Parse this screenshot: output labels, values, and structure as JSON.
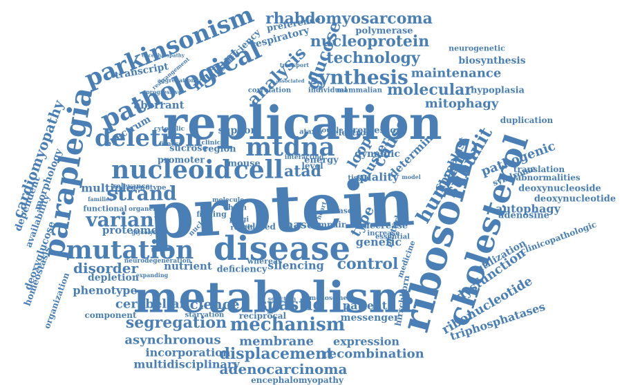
{
  "style": {
    "word_color": "#4a7fb5",
    "background": "#ffffff"
  },
  "words": [
    "protein",
    "replication",
    "metabolism",
    "disease",
    "ribosome",
    "cholesterol",
    "mutation",
    "nucleoid",
    "cell",
    "mtdna",
    "paraplegia",
    "pathological",
    "parkinsonism",
    "deletion",
    "strand",
    "variant",
    "human",
    "subunit",
    "synthesis",
    "rhabdomyosarcoma",
    "nucleoprotein",
    "technology",
    "analysis",
    "glucose",
    "mechanism",
    "segregation",
    "spastic",
    "science",
    "control",
    "molecular",
    "maintenance",
    "cardiomyopathy",
    "displacement",
    "recombination",
    "adenocarcinoma",
    "atad",
    "mutant",
    "disorder",
    "cerebellar",
    "asynchronous",
    "membrane",
    "expression",
    "pathogenic",
    "mitophagy",
    "fibroblast",
    "autophagy",
    "dysfunction",
    "ribonucleotide",
    "triphosphatases",
    "rnaseh",
    "patient",
    "genetic",
    "multidisciplinary",
    "incorporation",
    "encephalomyopathy",
    "phenotype",
    "depletion",
    "morphology",
    "dependent",
    "availability",
    "deoxyglucose",
    "homeostasis",
    "organization",
    "multiple",
    "proteome",
    "spectrum",
    "aberrant",
    "transcript",
    "respiratory",
    "preference",
    "polymerase",
    "biosynthesis",
    "neurogenetic",
    "hypoplasia",
    "duplication",
    "syndrome",
    "translation",
    "abnormalities",
    "deoxynucleoside",
    "deoxynucleotide",
    "adenosine",
    "clinicopathologic",
    "utilization",
    "hirschhorn",
    "messenger",
    "component",
    "starvation",
    "reciprocal",
    "silencing",
    "nutrient",
    "insufficiency",
    "cause",
    "type",
    "loop",
    "cluster",
    "quality",
    "dynamic",
    "support",
    "sucrose",
    "promoter",
    "region",
    "mouse",
    "energy",
    "level",
    "repressor",
    "electron",
    "couple",
    "ataxia",
    "individual",
    "mammalian",
    "correlation",
    "progressive",
    "cytosolic",
    "fitness",
    "clinical",
    "functional",
    "organelle",
    "relevance",
    "genotype",
    "finding",
    "nuclear",
    "chain",
    "polgi",
    "result",
    "related",
    "impair",
    "rnase",
    "decrease",
    "increase",
    "essential",
    "whereas",
    "deficiency",
    "selection",
    "monosome",
    "encephalopathy",
    "rearrangement",
    "aggregation",
    "associated",
    "neurodegeneration",
    "glycolysis",
    "expanding",
    "determine",
    "medicine",
    "transport",
    "interacting",
    "heart",
    "tissue",
    "model",
    "families",
    "perturbed",
    "molecule",
    "tumor"
  ]
}
